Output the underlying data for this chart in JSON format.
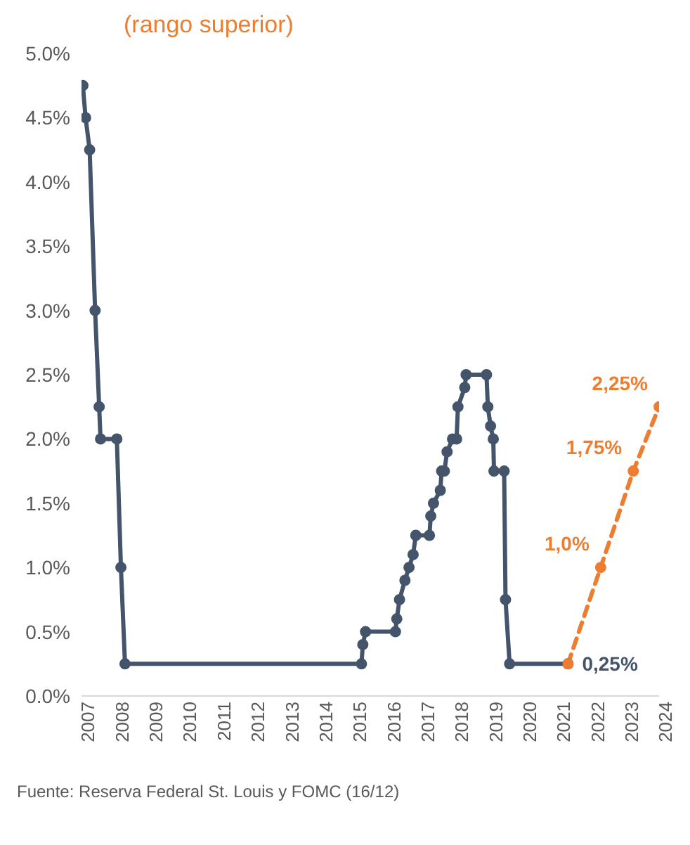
{
  "chart_data": {
    "type": "line",
    "title": "(rango superior)",
    "annotations": [
      "Fuente: Reserva Federal St. Louis y FOMC (16/12)"
    ],
    "xlim": [
      2007,
      2024
    ],
    "xticks": [
      2007,
      2008,
      2009,
      2010,
      2011,
      2012,
      2013,
      2014,
      2015,
      2016,
      2017,
      2018,
      2019,
      2020,
      2021,
      2022,
      2023,
      2024
    ],
    "ylim": [
      0,
      5
    ],
    "yticks": [
      {
        "value": 0,
        "label": "0.0%"
      },
      {
        "value": 0.5,
        "label": "0.5%"
      },
      {
        "value": 1,
        "label": "1.0%"
      },
      {
        "value": 1.5,
        "label": "1.5%"
      },
      {
        "value": 2,
        "label": "2.0%"
      },
      {
        "value": 2.5,
        "label": "2.5%"
      },
      {
        "value": 3,
        "label": "3.0%"
      },
      {
        "value": 3.5,
        "label": "3.5%"
      },
      {
        "value": 4,
        "label": "4.0%"
      },
      {
        "value": 4.5,
        "label": "4.5%"
      },
      {
        "value": 5,
        "label": "5.0%"
      }
    ],
    "marker": "circle",
    "series": [
      {
        "color": "#44546a",
        "line_style": "solid",
        "x": [
          2007.04,
          2007.12,
          2007.24,
          2007.4,
          2007.52,
          2007.56,
          2008.04,
          2008.16,
          2008.28,
          2015.24,
          2015.28,
          2015.36,
          2016.24,
          2016.28,
          2016.36,
          2016.52,
          2016.64,
          2016.76,
          2016.84,
          2017.24,
          2017.28,
          2017.36,
          2017.56,
          2017.6,
          2017.68,
          2017.76,
          2017.92,
          2018.04,
          2018.08,
          2018.28,
          2018.32,
          2018.92,
          2018.96,
          2019.04,
          2019.12,
          2019.14,
          2019.44,
          2019.48,
          2019.6,
          2021.32
        ],
        "values": [
          4.75,
          4.5,
          4.25,
          3.0,
          2.25,
          2.0,
          2.0,
          1.0,
          0.25,
          0.25,
          0.4,
          0.5,
          0.5,
          0.6,
          0.75,
          0.9,
          1.0,
          1.1,
          1.25,
          1.25,
          1.4,
          1.5,
          1.6,
          1.75,
          1.75,
          1.9,
          2.0,
          2.0,
          2.25,
          2.4,
          2.5,
          2.5,
          2.25,
          2.1,
          2.0,
          1.75,
          1.75,
          0.75,
          0.25,
          0.25
        ],
        "value_labels": [
          null,
          null,
          null,
          null,
          null,
          null,
          null,
          null,
          null,
          null,
          null,
          null,
          null,
          null,
          null,
          null,
          null,
          null,
          null,
          null,
          null,
          null,
          null,
          null,
          null,
          null,
          null,
          null,
          null,
          null,
          null,
          null,
          null,
          null,
          null,
          null,
          null,
          null,
          null,
          "0,25%"
        ]
      },
      {
        "color": "#ed7d31",
        "line_style": "dashed",
        "x": [
          2021.32,
          2022.28,
          2023.24,
          2024.0
        ],
        "values": [
          0.25,
          1.0,
          1.75,
          2.25
        ],
        "value_labels": [
          null,
          "1,0%",
          "1,75%",
          "2,25%"
        ]
      }
    ]
  }
}
